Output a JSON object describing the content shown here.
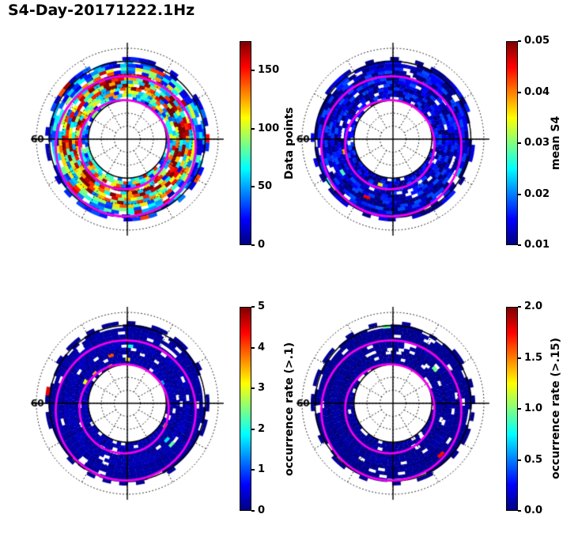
{
  "figure": {
    "title": "S4-Day-20171222.1Hz"
  },
  "latitude_label": "60",
  "colors": {
    "background": "#FFFFFF",
    "grid": "#000000",
    "magenta_overlay": "#EE00EE",
    "jet_stops": [
      "#00007F",
      "#0000FF",
      "#0080FF",
      "#00FFFF",
      "#80FF80",
      "#FFFF00",
      "#FF8000",
      "#FF0000",
      "#7F0000"
    ]
  },
  "panels": [
    {
      "id": "data-points",
      "colorbar_label": "Data points",
      "vmin": 0,
      "vmax": 175,
      "ticks": [
        {
          "value": 0,
          "label": "0"
        },
        {
          "value": 50,
          "label": "50"
        },
        {
          "value": 100,
          "label": "100"
        },
        {
          "value": 150,
          "label": "150"
        }
      ]
    },
    {
      "id": "mean-s4",
      "colorbar_label": "mean S4",
      "vmin": 0.01,
      "vmax": 0.05,
      "ticks": [
        {
          "value": 0.01,
          "label": "0.01"
        },
        {
          "value": 0.02,
          "label": "0.02"
        },
        {
          "value": 0.03,
          "label": "0.03"
        },
        {
          "value": 0.04,
          "label": "0.04"
        },
        {
          "value": 0.05,
          "label": "0.05"
        }
      ]
    },
    {
      "id": "occurrence-rate-gt-0-1",
      "colorbar_label": "occurrence rate (>.1)",
      "vmin": 0,
      "vmax": 5,
      "ticks": [
        {
          "value": 0,
          "label": "0"
        },
        {
          "value": 1,
          "label": "1"
        },
        {
          "value": 2,
          "label": "2"
        },
        {
          "value": 3,
          "label": "3"
        },
        {
          "value": 4,
          "label": "4"
        },
        {
          "value": 5,
          "label": "5"
        }
      ]
    },
    {
      "id": "occurrence-rate-gt-0-15",
      "colorbar_label": "occurrence rate (>.15)",
      "vmin": 0,
      "vmax": 2,
      "ticks": [
        {
          "value": 0.0,
          "label": "0.0"
        },
        {
          "value": 0.5,
          "label": "0.5"
        },
        {
          "value": 1.0,
          "label": "1.0"
        },
        {
          "value": 1.5,
          "label": "1.5"
        },
        {
          "value": 2.0,
          "label": "2.0"
        }
      ]
    }
  ],
  "chart_data": [
    {
      "type": "heatmap",
      "projection": "polar",
      "title": "Data points",
      "colormap": "jet",
      "colorbar_label": "Data points",
      "colorbar_range": [
        0,
        175
      ],
      "colorbar_ticks": [
        0,
        50,
        100,
        150
      ],
      "latitude_ring_label": "60",
      "distribution": "varied",
      "speck_fraction": 0.0,
      "radial_profile": {
        "radius_fraction": [
          0.45,
          0.48,
          0.52,
          0.55,
          0.59,
          0.62,
          0.66,
          0.69,
          0.73,
          0.76,
          0.8,
          0.83,
          0.87
        ],
        "mean_value": [
          55,
          80,
          105,
          125,
          138,
          142,
          132,
          112,
          90,
          68,
          50,
          38,
          28
        ]
      },
      "overlays": [
        "magenta oval contours (two rings)",
        "dotted latitude grid circles",
        "solid latitude circles",
        "meridian crosshair"
      ]
    },
    {
      "type": "heatmap",
      "projection": "polar",
      "title": "mean S4",
      "colormap": "jet",
      "colorbar_label": "mean S4",
      "colorbar_range": [
        0.01,
        0.05
      ],
      "colorbar_ticks": [
        0.01,
        0.02,
        0.03,
        0.04,
        0.05
      ],
      "latitude_ring_label": "60",
      "distribution": "near-floor",
      "speck_fraction": 0.006,
      "radial_profile": {
        "radius_fraction": [
          0.45,
          0.48,
          0.52,
          0.55,
          0.59,
          0.62,
          0.66,
          0.69,
          0.73,
          0.76,
          0.8,
          0.83,
          0.87
        ],
        "mean_value": [
          0.013,
          0.013,
          0.013,
          0.013,
          0.013,
          0.013,
          0.013,
          0.013,
          0.013,
          0.013,
          0.013,
          0.012,
          0.012
        ]
      },
      "overlays": [
        "magenta oval contours (two rings)",
        "dotted latitude grid circles",
        "solid latitude circles",
        "meridian crosshair"
      ]
    },
    {
      "type": "heatmap",
      "projection": "polar",
      "title": "occurrence rate (>.1)",
      "colormap": "jet",
      "colorbar_label": "occurrence rate (>.1)",
      "colorbar_range": [
        0,
        5
      ],
      "colorbar_ticks": [
        0,
        1,
        2,
        3,
        4,
        5
      ],
      "latitude_ring_label": "60",
      "distribution": "near-floor",
      "speck_fraction": 0.014,
      "radial_profile": {
        "radius_fraction": [
          0.45,
          0.48,
          0.52,
          0.55,
          0.59,
          0.62,
          0.66,
          0.69,
          0.73,
          0.76,
          0.8,
          0.83,
          0.87
        ],
        "mean_value": [
          0.25,
          0.22,
          0.2,
          0.2,
          0.22,
          0.25,
          0.25,
          0.22,
          0.2,
          0.18,
          0.15,
          0.12,
          0.1
        ]
      },
      "overlays": [
        "magenta oval contours (two rings)",
        "dotted latitude grid circles",
        "solid latitude circles",
        "meridian crosshair"
      ]
    },
    {
      "type": "heatmap",
      "projection": "polar",
      "title": "occurrence rate (>.15)",
      "colormap": "jet",
      "colorbar_label": "occurrence rate (>.15)",
      "colorbar_range": [
        0.0,
        2.0
      ],
      "colorbar_ticks": [
        0.0,
        0.5,
        1.0,
        1.5,
        2.0
      ],
      "latitude_ring_label": "60",
      "distribution": "near-floor",
      "speck_fraction": 0.01,
      "radial_profile": {
        "radius_fraction": [
          0.45,
          0.48,
          0.52,
          0.55,
          0.59,
          0.62,
          0.66,
          0.69,
          0.73,
          0.76,
          0.8,
          0.83,
          0.87
        ],
        "mean_value": [
          0.06,
          0.05,
          0.05,
          0.05,
          0.05,
          0.06,
          0.06,
          0.05,
          0.05,
          0.04,
          0.04,
          0.03,
          0.03
        ]
      },
      "overlays": [
        "magenta oval contours (two rings)",
        "dotted latitude grid circles",
        "solid latitude circles",
        "meridian crosshair"
      ]
    }
  ]
}
